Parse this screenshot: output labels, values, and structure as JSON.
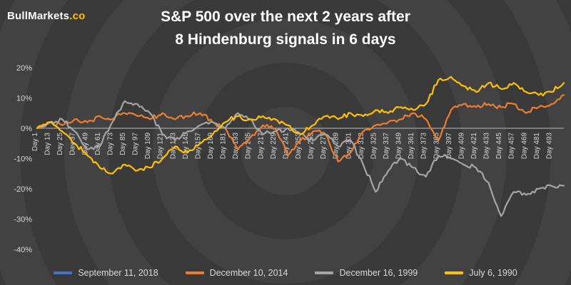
{
  "logo": {
    "brand": "BullMarkets",
    "suffix": ".co"
  },
  "title": {
    "line1": "S&P 500 over the next 2 years after",
    "line2": "8 Hindenburg signals in 6 days"
  },
  "chart_data": {
    "type": "line",
    "title": "S&P 500 over the next 2 years after 8 Hindenburg signals in 6 days",
    "xlabel": "",
    "ylabel": "",
    "grid": false,
    "legend_position": "bottom",
    "xlim": [
      1,
      505
    ],
    "ylim": [
      -40,
      20
    ],
    "y_ticks": [
      "20%",
      "10%",
      "0%",
      "-10%",
      "-20%",
      "-30%",
      "-40%"
    ],
    "x_tick_prefix": "Day ",
    "x_ticks": [
      1,
      13,
      25,
      37,
      49,
      61,
      73,
      85,
      97,
      109,
      121,
      133,
      145,
      157,
      169,
      181,
      193,
      205,
      217,
      229,
      241,
      253,
      265,
      277,
      289,
      301,
      313,
      325,
      337,
      349,
      361,
      373,
      385,
      397,
      409,
      421,
      433,
      445,
      457,
      469,
      481,
      493
    ],
    "anchor_days": [
      1,
      13,
      25,
      37,
      49,
      61,
      73,
      85,
      97,
      109,
      121,
      133,
      145,
      157,
      169,
      181,
      193,
      205,
      217,
      229,
      241,
      253,
      265,
      277,
      289,
      301,
      313,
      325,
      337,
      349,
      361,
      373,
      385,
      397,
      409,
      421,
      433,
      445,
      457,
      469,
      481,
      493,
      505
    ],
    "unit": "percent_change",
    "series": [
      {
        "name": "September 11, 2018",
        "color": "#4472C4",
        "days": [
          1,
          3,
          5,
          7,
          9
        ],
        "values": [
          0,
          0.4,
          0.9,
          0.5,
          0.1
        ]
      },
      {
        "name": "December 10, 2014",
        "color": "#ED7D31",
        "values": [
          0,
          2,
          1,
          3,
          2,
          4,
          3,
          5,
          4,
          3,
          5,
          3,
          4,
          5,
          2,
          0,
          -7,
          -3,
          1,
          0,
          -9,
          -4,
          -1,
          -2,
          -11,
          -8,
          -1,
          1,
          2,
          3,
          5,
          3,
          -4,
          6,
          8,
          7,
          8,
          7,
          8,
          5,
          7,
          8,
          11
        ]
      },
      {
        "name": "December 16, 1999",
        "color": "#A5A5A5",
        "values": [
          0,
          2,
          3,
          -1,
          -7,
          -6,
          2,
          9,
          8,
          5,
          -2,
          -4,
          -1,
          1,
          2,
          0,
          5,
          3,
          -2,
          -1,
          0,
          -2,
          -4,
          -2,
          -6,
          -4,
          -12,
          -21,
          -14,
          -10,
          -13,
          -16,
          -9,
          -10,
          -12,
          -13,
          -18,
          -29,
          -21,
          -22,
          -20,
          -19,
          -19
        ]
      },
      {
        "name": "July 6, 1990",
        "color": "#FFC000",
        "values": [
          0,
          2,
          -1,
          -5,
          -9,
          -13,
          -15,
          -12,
          -14,
          -13,
          -10,
          -6,
          -8,
          -5,
          -2,
          2,
          4,
          3,
          4,
          3,
          1,
          -2,
          1,
          4,
          3,
          5,
          4,
          6,
          5,
          7,
          6,
          8,
          16,
          17,
          14,
          12,
          15,
          13,
          15,
          12,
          11,
          12,
          15
        ]
      }
    ]
  }
}
